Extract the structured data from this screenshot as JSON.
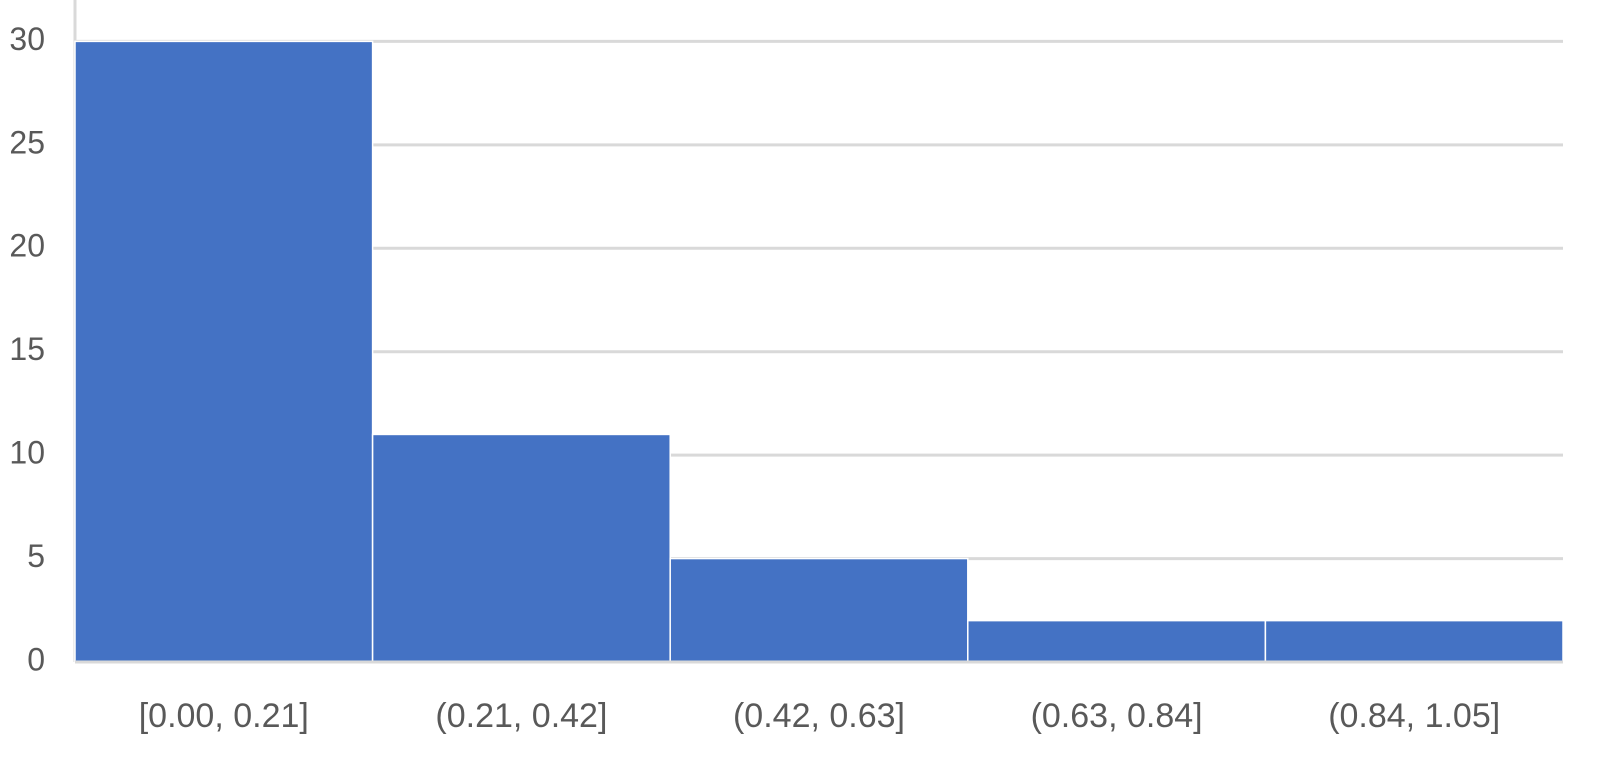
{
  "chart_data": {
    "type": "bar",
    "categories": [
      "[0.00, 0.21]",
      "(0.21, 0.42]",
      "(0.42, 0.63]",
      "(0.63, 0.84]",
      "(0.84, 1.05]"
    ],
    "values": [
      30,
      11,
      5,
      2,
      2
    ],
    "color": "#4472c4",
    "ylim": [
      0,
      32
    ],
    "yticks": [
      0,
      5,
      10,
      15,
      20,
      25,
      30
    ],
    "grid": true
  }
}
